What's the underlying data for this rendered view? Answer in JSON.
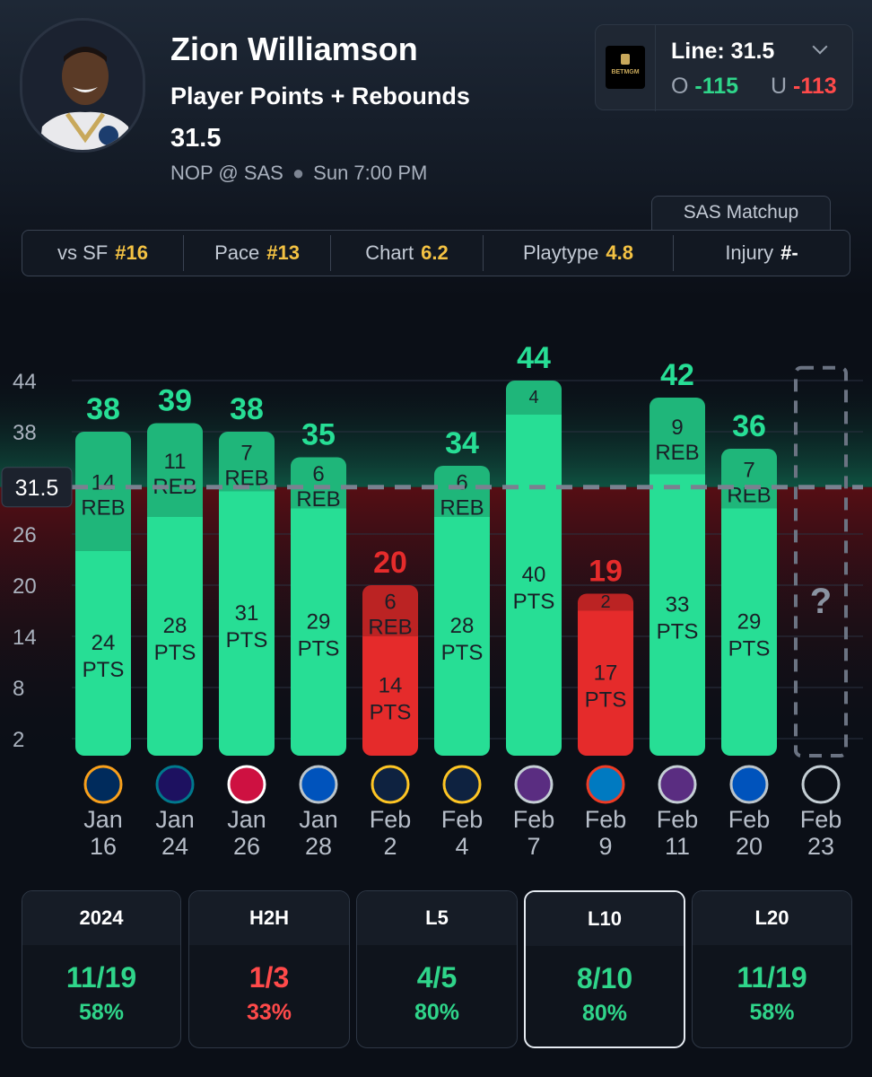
{
  "header": {
    "player": "Zion Williamson",
    "market": "Player Points + Rebounds",
    "line": "31.5",
    "game": "NOP @ SAS",
    "time": "Sun 7:00 PM"
  },
  "line_box": {
    "book": "BETMGM",
    "label": "Line: 31.5",
    "over_label": "O",
    "over_odds": "-115",
    "under_label": "U",
    "under_odds": "-113"
  },
  "matchup": {
    "tab": "SAS Matchup",
    "stats": [
      {
        "label": "vs SF",
        "value": "#16"
      },
      {
        "label": "Pace",
        "value": "#13"
      },
      {
        "label": "Chart",
        "value": "6.2"
      },
      {
        "label": "Playtype",
        "value": "4.8"
      },
      {
        "label": "Injury",
        "value": "#-"
      }
    ]
  },
  "colors": {
    "over": "#27de95",
    "under": "#e52b2b",
    "accent_gold": "#f4c243"
  },
  "chart_data": {
    "type": "bar",
    "line": 31.5,
    "line_label": "31.5",
    "yticks": [
      2,
      8,
      14,
      20,
      26,
      38,
      44
    ],
    "ylim": [
      0,
      46
    ],
    "categories": [
      "Jan 16",
      "Jan 24",
      "Jan 26",
      "Jan 28",
      "Feb 2",
      "Feb 4",
      "Feb 7",
      "Feb 9",
      "Feb 11",
      "Feb 20",
      "Feb 23"
    ],
    "dates": [
      [
        "Jan",
        "16"
      ],
      [
        "Jan",
        "24"
      ],
      [
        "Jan",
        "26"
      ],
      [
        "Jan",
        "28"
      ],
      [
        "Feb",
        "2"
      ],
      [
        "Feb",
        "4"
      ],
      [
        "Feb",
        "7"
      ],
      [
        "Feb",
        "9"
      ],
      [
        "Feb",
        "11"
      ],
      [
        "Feb",
        "20"
      ],
      [
        "Feb",
        "23"
      ]
    ],
    "opponents": [
      "jazz-logo-icon",
      "hornets-logo-icon",
      "raptors-logo-icon",
      "mavericks-logo-icon",
      "nuggets-logo-icon",
      "nuggets-logo-icon",
      "kings-logo-icon",
      "thunder-logo-icon",
      "kings-logo-icon",
      "mavericks-logo-icon",
      "spurs-logo-icon"
    ],
    "series": [
      {
        "name": "PTS",
        "values": [
          24,
          28,
          31,
          29,
          14,
          28,
          40,
          17,
          33,
          29,
          null
        ]
      },
      {
        "name": "REB",
        "values": [
          14,
          11,
          7,
          6,
          6,
          6,
          4,
          2,
          9,
          7,
          null
        ]
      }
    ],
    "totals": [
      38,
      39,
      38,
      35,
      20,
      34,
      44,
      19,
      42,
      36,
      null
    ],
    "unit_pts": "PTS",
    "unit_reb": "REB",
    "pending_label": "?"
  },
  "cards": [
    {
      "label": "2024",
      "record": "11/19",
      "pct": "58%",
      "hit": true
    },
    {
      "label": "H2H",
      "record": "1/3",
      "pct": "33%",
      "hit": false
    },
    {
      "label": "L5",
      "record": "4/5",
      "pct": "80%",
      "hit": true
    },
    {
      "label": "L10",
      "record": "8/10",
      "pct": "80%",
      "hit": true
    },
    {
      "label": "L20",
      "record": "11/19",
      "pct": "58%",
      "hit": true
    }
  ]
}
